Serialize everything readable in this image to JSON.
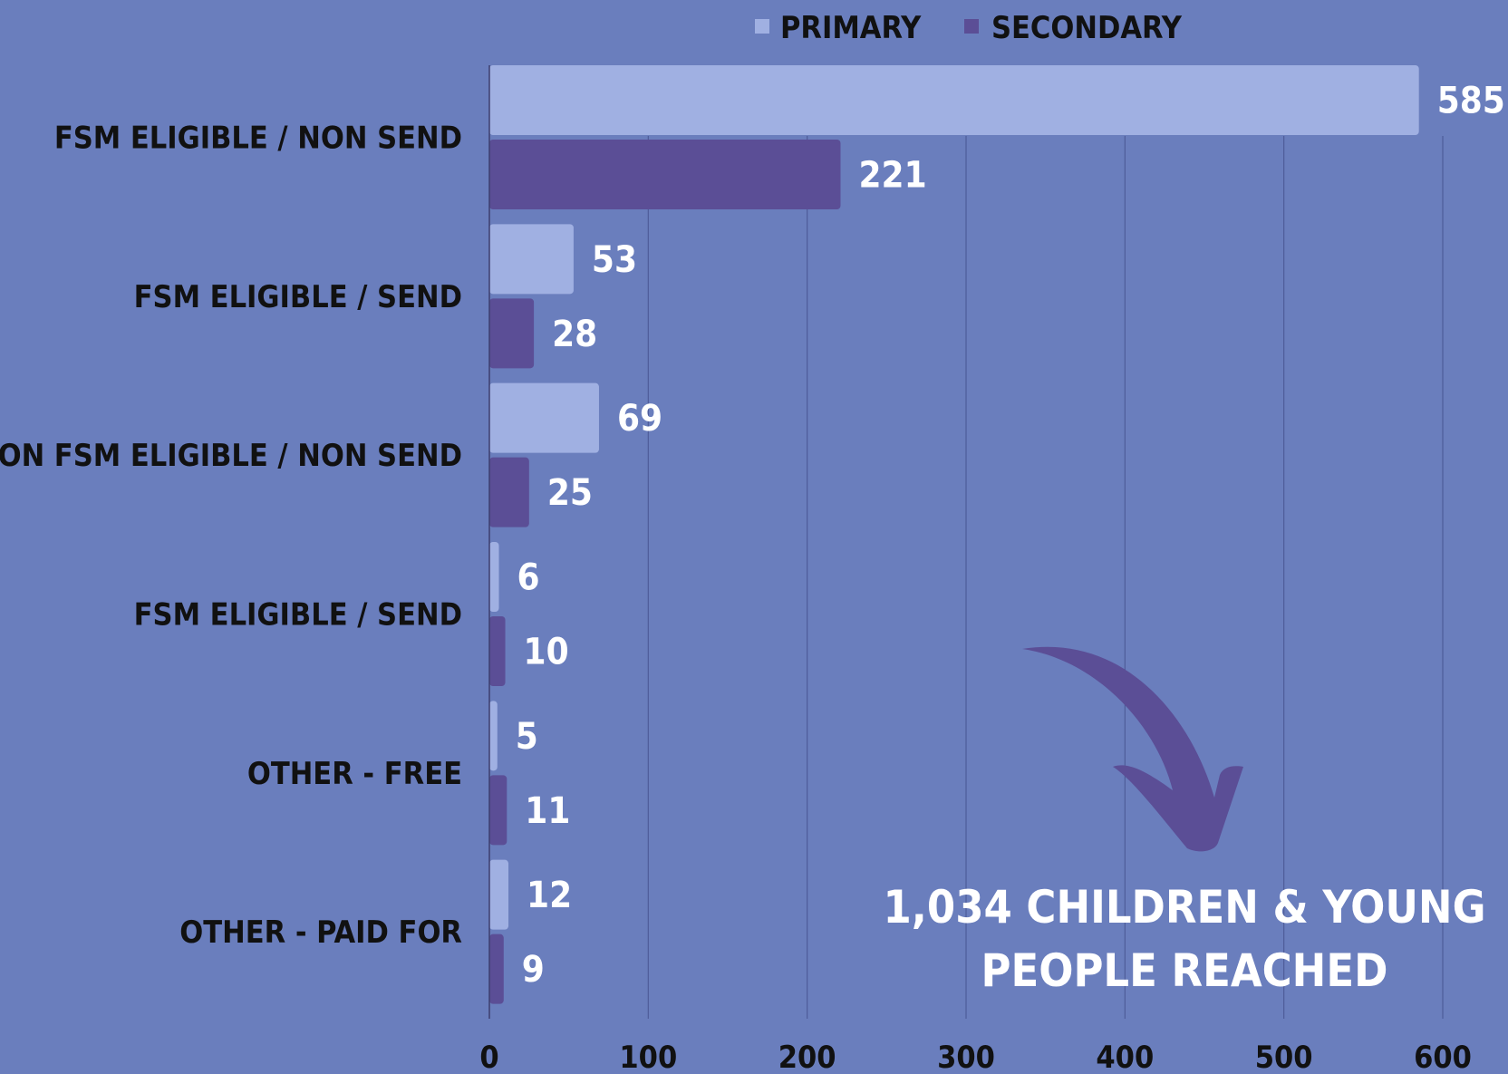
{
  "chart_data": {
    "type": "bar",
    "orientation": "horizontal",
    "categories": [
      "FSM ELIGIBLE / NON SEND",
      "FSM ELIGIBLE / SEND",
      "NON FSM ELIGIBLE / NON SEND",
      "FSM ELIGIBLE / SEND",
      "OTHER - FREE",
      "OTHER - PAID FOR"
    ],
    "series": [
      {
        "name": "PRIMARY",
        "color": "#a0b0e2",
        "values": [
          585,
          53,
          69,
          6,
          5,
          12
        ]
      },
      {
        "name": "SECONDARY",
        "color": "#5b4e96",
        "values": [
          221,
          28,
          25,
          10,
          11,
          9
        ]
      }
    ],
    "xlim": [
      0,
      600
    ],
    "xticks": [
      "0",
      "100",
      "200",
      "300",
      "400",
      "500",
      "600"
    ],
    "grid": "vertical",
    "legend": "top-center",
    "annotation": {
      "lines": [
        "1,034 CHILDREN & YOUNG",
        "PEOPLE REACHED"
      ],
      "arrow_icon": "curved-arrow-icon",
      "color": "#5b4e96"
    }
  }
}
